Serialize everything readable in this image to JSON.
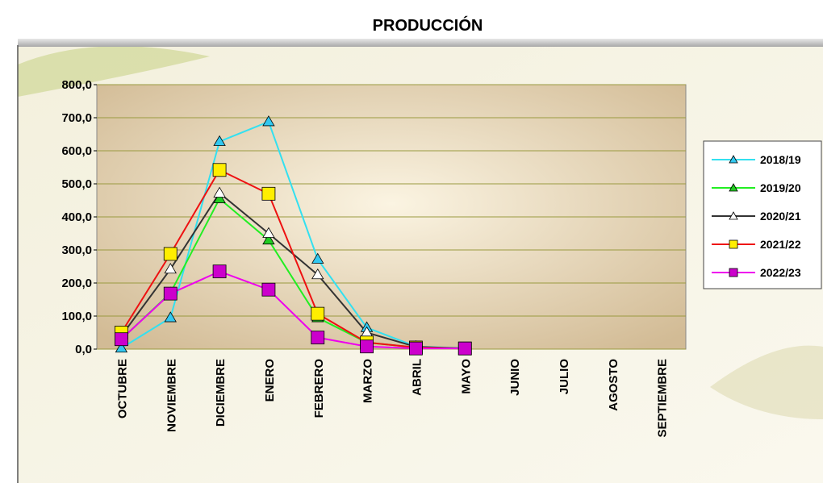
{
  "chart_data": {
    "type": "line",
    "title": "PRODUCCIÓN",
    "categories": [
      "OCTUBRE",
      "NOVIEMBRE",
      "DICIEMBRE",
      "ENERO",
      "FEBRERO",
      "MARZO",
      "ABRIL",
      "MAYO",
      "JUNIO",
      "JULIO",
      "AGOSTO",
      "SEPTIEMBRE"
    ],
    "ylim": [
      0,
      800
    ],
    "yticks": [
      {
        "value": 0,
        "label": "0,0"
      },
      {
        "value": 100,
        "label": "100,0"
      },
      {
        "value": 200,
        "label": "200,0"
      },
      {
        "value": 300,
        "label": "300,0"
      },
      {
        "value": 400,
        "label": "400,0"
      },
      {
        "value": 500,
        "label": "500,0"
      },
      {
        "value": 600,
        "label": "600,0"
      },
      {
        "value": 700,
        "label": "700,0"
      },
      {
        "value": 800,
        "label": "800,0"
      }
    ],
    "grid": true,
    "legend": "right",
    "series": [
      {
        "name": "2018/19",
        "color": "#33e0f0",
        "marker": "triangle",
        "marker_fill": "#33c8f0",
        "values": [
          3,
          95,
          628,
          688,
          272,
          65,
          8,
          3,
          null,
          null,
          null,
          null
        ]
      },
      {
        "name": "2019/20",
        "color": "#22ee22",
        "marker": "triangle",
        "marker_fill": "#22cc22",
        "values": [
          30,
          170,
          455,
          330,
          95,
          20,
          5,
          2,
          null,
          null,
          null,
          null
        ]
      },
      {
        "name": "2020/21",
        "color": "#333333",
        "marker": "triangle",
        "marker_fill": "#ffffff",
        "values": [
          40,
          242,
          472,
          350,
          225,
          50,
          7,
          2,
          null,
          null,
          null,
          null
        ]
      },
      {
        "name": "2021/22",
        "color": "#ee1111",
        "marker": "square",
        "marker_fill": "#ffee00",
        "values": [
          50,
          288,
          542,
          470,
          107,
          20,
          5,
          2,
          null,
          null,
          null,
          null
        ]
      },
      {
        "name": "2022/23",
        "color": "#ee00ee",
        "marker": "square",
        "marker_fill": "#cc00cc",
        "values": [
          30,
          168,
          235,
          180,
          35,
          8,
          2,
          2,
          null,
          null,
          null,
          null
        ]
      }
    ]
  }
}
